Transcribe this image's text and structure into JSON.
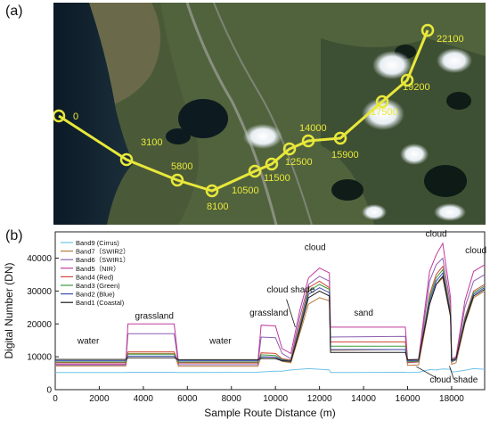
{
  "panel_a": {
    "label": "(a)",
    "route_markers": [
      {
        "label": "0"
      },
      {
        "label": "3100"
      },
      {
        "label": "5800"
      },
      {
        "label": "8100"
      },
      {
        "label": "10500"
      },
      {
        "label": "11500"
      },
      {
        "label": "12500"
      },
      {
        "label": "14000"
      },
      {
        "label": "15900"
      },
      {
        "label": "17500"
      },
      {
        "label": "19200"
      },
      {
        "label": "22100"
      }
    ],
    "route_color": "#e8e83a"
  },
  "panel_b": {
    "label": "(b)"
  },
  "chart_data": {
    "type": "line",
    "xlabel": "Sample Route Distance (m)",
    "ylabel": "Digital Number (DN)",
    "xlim": [
      0,
      19500
    ],
    "ylim": [
      0,
      48000
    ],
    "xticks": [
      0,
      2000,
      4000,
      6000,
      8000,
      10000,
      12000,
      14000,
      16000,
      18000
    ],
    "yticks": [
      0,
      10000,
      20000,
      30000,
      40000
    ],
    "legend_position": "top-left",
    "x": [
      0,
      3200,
      3300,
      5400,
      5600,
      9200,
      9350,
      10000,
      10300,
      10700,
      11100,
      11500,
      12000,
      12450,
      12500,
      15900,
      16000,
      16500,
      17000,
      17300,
      17600,
      17950,
      18000,
      18200,
      18600,
      19000,
      19500
    ],
    "series": [
      {
        "name": "Band9 (Cirrus)",
        "color": "#6fc3e8",
        "values": [
          5200,
          5200,
          5300,
          5300,
          5200,
          5300,
          5400,
          5600,
          5600,
          6000,
          6200,
          6400,
          6200,
          6000,
          5200,
          5300,
          5200,
          5300,
          6100,
          6000,
          6300,
          6200,
          5400,
          5500,
          5900,
          6400,
          6200
        ]
      },
      {
        "name": "Band7（SWIR2）",
        "color": "#b87b3a",
        "values": [
          7200,
          7200,
          11000,
          11000,
          7100,
          7100,
          10000,
          9800,
          8600,
          8200,
          17000,
          26000,
          28000,
          27000,
          12000,
          12200,
          7400,
          7500,
          26000,
          32000,
          34000,
          22000,
          7700,
          8200,
          20000,
          28000,
          30000
        ]
      },
      {
        "name": "Band6（SWIR1）",
        "color": "#8b5fb0",
        "values": [
          7500,
          7500,
          17000,
          17000,
          7600,
          7600,
          16000,
          15800,
          11000,
          9400,
          22000,
          32000,
          34500,
          33000,
          16000,
          16200,
          8200,
          8400,
          33000,
          38000,
          40000,
          26000,
          8400,
          9000,
          25000,
          33000,
          35000
        ]
      },
      {
        "name": "Band5（NIR）",
        "color": "#c03a9b",
        "values": [
          7800,
          7800,
          20000,
          20000,
          8200,
          8200,
          19600,
          19400,
          12500,
          11000,
          24000,
          34000,
          37000,
          35500,
          19000,
          19000,
          9000,
          9200,
          36000,
          41000,
          44500,
          28000,
          9400,
          10000,
          27000,
          36000,
          38000
        ]
      },
      {
        "name": "Band4 (Red)",
        "color": "#d24a3a",
        "values": [
          8200,
          8200,
          11500,
          11500,
          8100,
          8100,
          11200,
          11000,
          9400,
          9000,
          20000,
          31000,
          33000,
          31000,
          14500,
          14500,
          8300,
          8500,
          29000,
          35000,
          37500,
          24000,
          8500,
          9200,
          22000,
          30000,
          32000
        ]
      },
      {
        "name": "Band3 (Green)",
        "color": "#3d9a3d",
        "values": [
          8400,
          8400,
          10800,
          10800,
          8400,
          8400,
          10600,
          10400,
          9200,
          8800,
          19000,
          30000,
          32000,
          30500,
          13200,
          13200,
          8500,
          8700,
          28000,
          34000,
          36500,
          23500,
          8600,
          9200,
          21500,
          29500,
          31500
        ]
      },
      {
        "name": "Band2 (Blue)",
        "color": "#3f4fb5",
        "values": [
          8800,
          8800,
          10200,
          10200,
          8800,
          8800,
          10000,
          9900,
          9000,
          8700,
          18500,
          29000,
          31000,
          29500,
          12200,
          12200,
          8800,
          8900,
          27000,
          33000,
          35500,
          23000,
          8800,
          9300,
          21000,
          29000,
          31000
        ]
      },
      {
        "name": "Band1 (Coastal)",
        "color": "#1a1a1a",
        "values": [
          9200,
          9200,
          9700,
          9700,
          9100,
          9100,
          9500,
          9400,
          8800,
          8600,
          18000,
          28000,
          30000,
          28500,
          11300,
          11300,
          9100,
          9200,
          26000,
          32000,
          34500,
          22500,
          9000,
          9500,
          20500,
          28500,
          30500
        ]
      }
    ],
    "annotations": [
      {
        "text": "water"
      },
      {
        "text": "grassland"
      },
      {
        "text": "water"
      },
      {
        "text": "grassland"
      },
      {
        "text": "cloud shade"
      },
      {
        "text": "cloud"
      },
      {
        "text": "sand"
      },
      {
        "text": "cloud"
      },
      {
        "text": "cloud"
      },
      {
        "text": "cloud shade"
      }
    ]
  }
}
